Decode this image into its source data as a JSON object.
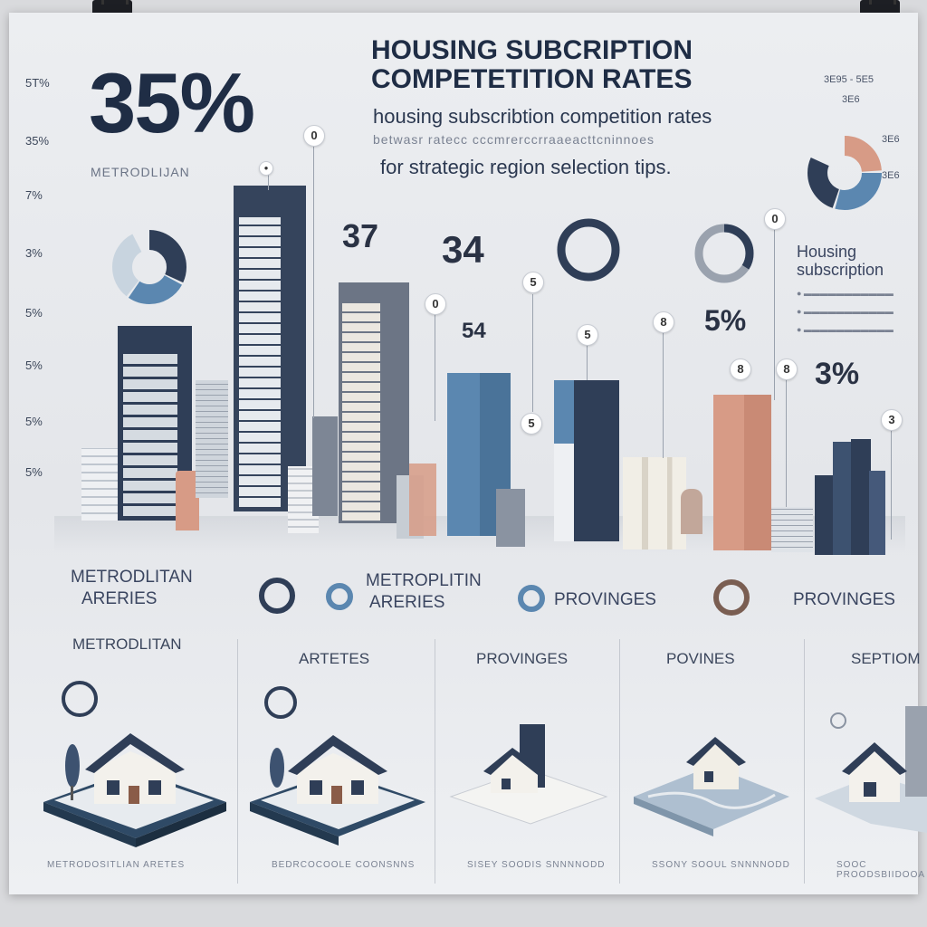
{
  "header": {
    "big_stat": "35%",
    "big_stat_label": "METRODLIJAN",
    "title_line1": "HOUSING SUBCRIPTION",
    "title_line2": "COMPETETITION   RATES",
    "subtitle": "housing subscribtion competition rates",
    "blur_line": "betwasr ratecc cccmrerccrraaeacttcninnoes",
    "selection_tips": "for strategic region selection tips."
  },
  "y_axis_labels": [
    "5T%",
    "35%",
    "7%",
    "3%",
    "5%",
    "5%",
    "5%",
    "5%"
  ],
  "bar_values": [
    "37",
    "34",
    "54",
    "5%",
    "3%"
  ],
  "pins": [
    "0",
    "5",
    "0",
    "5",
    "5",
    "8",
    "0",
    "8",
    "8",
    "0",
    "3"
  ],
  "right_legend": {
    "title_line1": "Housing",
    "title_line2": "subscription",
    "pie_labels": [
      "3E95 - 5E5",
      "3E6",
      "3E6",
      "3E6"
    ]
  },
  "legend_row": {
    "item1_line1": "METRODLITAN",
    "item1_line2": "ARERIES",
    "item2_line1": "METROPLITIN",
    "item2_line2": "ARERIES",
    "item3": "PROVINGES",
    "item4": "PROVINGES"
  },
  "cards": [
    {
      "title": "METRODLITAN",
      "footer": "METRODOSITLIAN ARETES"
    },
    {
      "title": "ARTETES",
      "footer": "BEDRCOCOOLE  COONSNNS"
    },
    {
      "title": "PROVINGES",
      "footer": "SISEY SOODIS  SNNNNODD"
    },
    {
      "title": "POVINES",
      "footer": "SSONY  SOOUL  SNNNNODD"
    },
    {
      "title": "SEPTIOM",
      "footer": "SOOC PROODSBIIDOOA"
    }
  ],
  "colors": {
    "navy": "#2f3e57",
    "steel_blue": "#5b87b0",
    "light_blue": "#9ab7cf",
    "peach": "#d79b86",
    "gray": "#8a93a1",
    "cream": "#f1eee6"
  }
}
